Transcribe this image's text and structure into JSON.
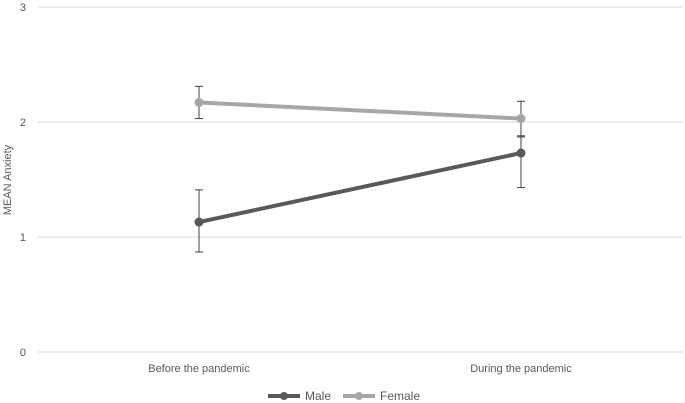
{
  "chart_data": {
    "type": "line",
    "title": "",
    "xlabel": "",
    "ylabel": "MEAN Anxiety",
    "categories": [
      "Before the pandemic",
      "During the pandemic"
    ],
    "ylim": [
      0,
      3
    ],
    "yticks": [
      "0",
      "1",
      "2",
      "3"
    ],
    "grid": true,
    "legend_position": "bottom",
    "series": [
      {
        "name": "Male",
        "color": "#595959",
        "values": [
          1.13,
          1.73
        ],
        "error_low": [
          0.87,
          1.43
        ],
        "error_high": [
          1.41,
          1.88
        ]
      },
      {
        "name": "Female",
        "color": "#a6a6a6",
        "values": [
          2.17,
          2.03
        ],
        "error_low": [
          2.03,
          1.87
        ],
        "error_high": [
          2.31,
          2.18
        ]
      }
    ]
  }
}
